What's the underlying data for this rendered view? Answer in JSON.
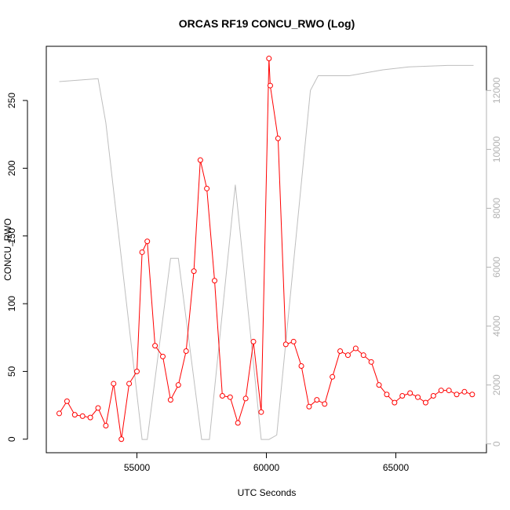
{
  "chart_data": {
    "type": "line",
    "title": "ORCAS RF19 CONCU_RWO (Log)",
    "xlabel": "UTC Seconds",
    "ylabel": "CONCU_RWO",
    "xlim": [
      51500,
      68500
    ],
    "ylim": [
      -10,
      290
    ],
    "y2lim": [
      -300,
      13500
    ],
    "xticks": [
      55000,
      60000,
      65000
    ],
    "yticks": [
      0,
      50,
      100,
      150,
      200,
      250
    ],
    "y2ticks": [
      0,
      2000,
      4000,
      6000,
      8000,
      10000,
      12000
    ],
    "grid": false,
    "legend": "none",
    "colors": {
      "primary": "#ff0000",
      "secondary": "#bebebe"
    },
    "series": [
      {
        "axis": "left",
        "style": "line+circle",
        "color": "#ff0000",
        "x": [
          52000,
          52300,
          52600,
          52900,
          53200,
          53500,
          53800,
          54100,
          54400,
          54700,
          55000,
          55200,
          55400,
          55700,
          56000,
          56300,
          56600,
          56900,
          57200,
          57450,
          57700,
          58000,
          58300,
          58600,
          58900,
          59200,
          59500,
          59800,
          60100,
          60150,
          60450,
          60750,
          61050,
          61350,
          61650,
          61950,
          62250,
          62550,
          62850,
          63150,
          63450,
          63750,
          64050,
          64350,
          64650,
          64950,
          65250,
          65550,
          65850,
          66150,
          66450,
          66750,
          67050,
          67350,
          67650,
          67950
        ],
        "y": [
          19,
          28,
          18,
          17,
          16,
          23,
          10,
          41,
          0,
          41,
          50,
          138,
          146,
          69,
          61,
          29,
          40,
          65,
          124,
          206,
          185,
          117,
          32,
          31,
          12,
          30,
          72,
          20,
          281,
          261,
          222,
          70,
          72,
          54,
          24,
          29,
          26,
          46,
          65,
          62,
          67,
          62,
          57,
          40,
          33,
          27,
          32,
          34,
          31,
          27,
          32,
          36,
          36,
          33,
          35,
          33
        ]
      },
      {
        "axis": "right",
        "style": "line",
        "color": "#bebebe",
        "x": [
          52000,
          53500,
          53800,
          55200,
          55400,
          56300,
          56600,
          57500,
          57800,
          58800,
          59800,
          60100,
          60400,
          61700,
          62000,
          62200,
          63200,
          64500,
          65500,
          67000,
          68000
        ],
        "y": [
          12300,
          12400,
          10900,
          150,
          150,
          6300,
          6300,
          150,
          150,
          8800,
          150,
          150,
          300,
          12000,
          12500,
          12500,
          12500,
          12700,
          12800,
          12850,
          12850
        ]
      }
    ]
  }
}
